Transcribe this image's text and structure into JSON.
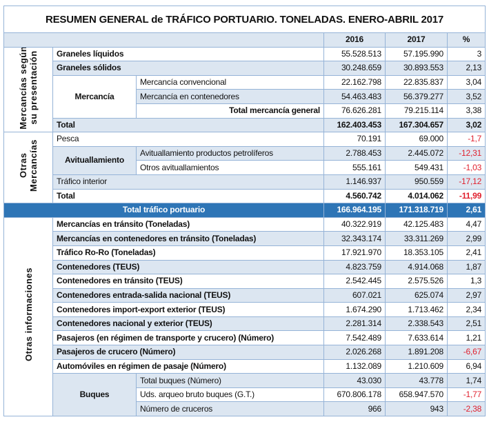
{
  "title": "RESUMEN GENERAL de TRÁFICO PORTUARIO. TONELADAS. ENERO-ABRIL 2017",
  "headers": {
    "y2016": "2016",
    "y2017": "2017",
    "pct": "%"
  },
  "colors": {
    "header_bg": "#dce6f1",
    "total_bg": "#2e75b6",
    "negative": "#e0202e",
    "border": "#95b3d7"
  },
  "section1": {
    "label": "Mercancías según su presentación",
    "rows": [
      {
        "label": "Graneles líquidos",
        "v2016": "55.528.513",
        "v2017": "57.195.990",
        "pct": "3"
      },
      {
        "label": "Graneles sólidos",
        "v2016": "30.248.659",
        "v2017": "30.893.553",
        "pct": "2,13"
      },
      {
        "group": "Mercancía",
        "label": "Mercancía convencional",
        "v2016": "22.162.798",
        "v2017": "22.835.837",
        "pct": "3,04"
      },
      {
        "label": "Mercancía en contenedores",
        "v2016": "54.463.483",
        "v2017": "56.379.277",
        "pct": "3,52"
      },
      {
        "label": "Total mercancía general",
        "v2016": "76.626.281",
        "v2017": "79.215.114",
        "pct": "3,38"
      },
      {
        "label": "Total",
        "v2016": "162.403.453",
        "v2017": "167.304.657",
        "pct": "3,02"
      }
    ]
  },
  "section2": {
    "label": "Otras Mercancías",
    "rows": [
      {
        "label": "Pesca",
        "v2016": "70.191",
        "v2017": "69.000",
        "pct": "-1,7"
      },
      {
        "group": "Avituallamiento",
        "label": "Avituallamiento productos petrolíferos",
        "v2016": "2.788.453",
        "v2017": "2.445.072",
        "pct": "-12,31"
      },
      {
        "label": "Otros avituallamientos",
        "v2016": "555.161",
        "v2017": "549.431",
        "pct": "-1,03"
      },
      {
        "label": "Tráfico interior",
        "v2016": "1.146.937",
        "v2017": "950.559",
        "pct": "-17,12"
      },
      {
        "label": "Total",
        "v2016": "4.560.742",
        "v2017": "4.014.062",
        "pct": "-11,99"
      }
    ]
  },
  "total_trafico": {
    "label": "Total tráfico portuario",
    "v2016": "166.964.195",
    "v2017": "171.318.719",
    "pct": "2,61"
  },
  "section3": {
    "label": "Otras informaciones",
    "rows": [
      {
        "label": "Mercancías en tránsito (Toneladas)",
        "v2016": "40.322.919",
        "v2017": "42.125.483",
        "pct": "4,47"
      },
      {
        "label": "Mercancías en contenedores en tránsito (Toneladas)",
        "v2016": "32.343.174",
        "v2017": "33.311.269",
        "pct": "2,99"
      },
      {
        "label": "Tráfico Ro-Ro (Toneladas)",
        "v2016": "17.921.970",
        "v2017": "18.353.105",
        "pct": "2,41"
      },
      {
        "label": "Contenedores (TEUS)",
        "v2016": "4.823.759",
        "v2017": "4.914.068",
        "pct": "1,87"
      },
      {
        "label": "Contenedores en tránsito (TEUS)",
        "v2016": "2.542.445",
        "v2017": "2.575.526",
        "pct": "1,3"
      },
      {
        "label": "Contenedores entrada-salida nacional (TEUS)",
        "v2016": "607.021",
        "v2017": "625.074",
        "pct": "2,97"
      },
      {
        "label": "Contenedores import-export exterior (TEUS)",
        "v2016": "1.674.290",
        "v2017": "1.713.462",
        "pct": "2,34"
      },
      {
        "label": "Contenedores nacional y exterior (TEUS)",
        "v2016": "2.281.314",
        "v2017": "2.338.543",
        "pct": "2,51"
      },
      {
        "label": "Pasajeros (en régimen de transporte y crucero) (Número)",
        "v2016": "7.542.489",
        "v2017": "7.633.614",
        "pct": "1,21"
      },
      {
        "label": "Pasajeros de crucero (Número)",
        "v2016": "2.026.268",
        "v2017": "1.891.208",
        "pct": "-6,67"
      },
      {
        "label": "Automóviles en régimen de pasaje (Número)",
        "v2016": "1.132.089",
        "v2017": "1.210.609",
        "pct": "6,94"
      },
      {
        "group": "Buques",
        "label": "Total buques (Número)",
        "v2016": "43.030",
        "v2017": "43.778",
        "pct": "1,74"
      },
      {
        "label": "Uds. arqueo bruto buques (G.T.)",
        "v2016": "670.806.178",
        "v2017": "658.947.570",
        "pct": "-1,77"
      },
      {
        "label": "Número de cruceros",
        "v2016": "966",
        "v2017": "943",
        "pct": "-2,38"
      }
    ]
  }
}
